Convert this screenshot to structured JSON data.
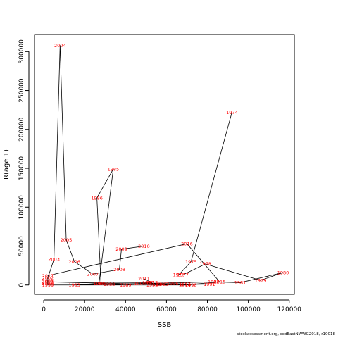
{
  "chart_data": {
    "type": "scatter",
    "connected": true,
    "xlabel": "SSB",
    "ylabel": "R(age 1)",
    "xlim": [
      -4500,
      122500
    ],
    "ylim": [
      -12000,
      322000
    ],
    "xticks": [
      0,
      20000,
      40000,
      60000,
      80000,
      100000,
      120000
    ],
    "yticks": [
      0,
      50000,
      100000,
      150000,
      200000,
      250000,
      300000
    ],
    "line_color": "#000000",
    "label_color": "#ff0000",
    "points": [
      {
        "year": "1974",
        "ssb": 92000,
        "r": 222000
      },
      {
        "year": "1975",
        "ssb": 72000,
        "r": 30000
      },
      {
        "year": "1976",
        "ssb": 66000,
        "r": 13000
      },
      {
        "year": "1977",
        "ssb": 68000,
        "r": 13000
      },
      {
        "year": "1978",
        "ssb": 79000,
        "r": 27000
      },
      {
        "year": "1979",
        "ssb": 106000,
        "r": 6000
      },
      {
        "year": "1980",
        "ssb": 117000,
        "r": 16000
      },
      {
        "year": "1981",
        "ssb": 96000,
        "r": 3000
      },
      {
        "year": "1982",
        "ssb": 83000,
        "r": 4000
      },
      {
        "year": "1983",
        "ssb": 15000,
        "r": 0
      },
      {
        "year": "1984",
        "ssb": 27000,
        "r": 2000
      },
      {
        "year": "1985",
        "ssb": 34000,
        "r": 149000
      },
      {
        "year": "1986",
        "ssb": 26000,
        "r": 112000
      },
      {
        "year": "1987",
        "ssb": 28000,
        "r": 2000
      },
      {
        "year": "1988",
        "ssb": 32000,
        "r": 1000
      },
      {
        "year": "1989",
        "ssb": 40000,
        "r": 0
      },
      {
        "year": "1990",
        "ssb": 47000,
        "r": 2000
      },
      {
        "year": "1991",
        "ssb": 81000,
        "r": 1000
      },
      {
        "year": "1992",
        "ssb": 53000,
        "r": 0
      },
      {
        "year": "1993",
        "ssb": 51000,
        "r": 3000
      },
      {
        "year": "1994",
        "ssb": 56000,
        "r": 1000
      },
      {
        "year": "1995",
        "ssb": 58000,
        "r": 1000
      },
      {
        "year": "1996",
        "ssb": 63000,
        "r": 2000
      },
      {
        "year": "1997",
        "ssb": 69000,
        "r": 1000
      },
      {
        "year": "1998",
        "ssb": 72000,
        "r": 0
      },
      {
        "year": "1999",
        "ssb": 2000,
        "r": 0
      },
      {
        "year": "2000",
        "ssb": 2000,
        "r": 2000
      },
      {
        "year": "2001",
        "ssb": 2000,
        "r": 5000
      },
      {
        "year": "2002",
        "ssb": 2000,
        "r": 9000
      },
      {
        "year": "2003",
        "ssb": 5000,
        "r": 33000
      },
      {
        "year": "2004",
        "ssb": 8000,
        "r": 308000
      },
      {
        "year": "2005",
        "ssb": 11000,
        "r": 58000
      },
      {
        "year": "2006",
        "ssb": 15000,
        "r": 30000
      },
      {
        "year": "2007",
        "ssb": 24000,
        "r": 14000
      },
      {
        "year": "2008",
        "ssb": 37000,
        "r": 20000
      },
      {
        "year": "2009",
        "ssb": 38000,
        "r": 46000
      },
      {
        "year": "2010",
        "ssb": 49000,
        "r": 50000
      },
      {
        "year": "2011",
        "ssb": 49000,
        "r": 8000
      },
      {
        "year": "2012",
        "ssb": 53000,
        "r": 3000
      },
      {
        "year": "2013",
        "ssb": 2000,
        "r": 4000
      },
      {
        "year": "2014",
        "ssb": 69000,
        "r": 0
      },
      {
        "year": "2015",
        "ssb": 86000,
        "r": 4000
      },
      {
        "year": "2016",
        "ssb": 70000,
        "r": 53000
      },
      {
        "year": "2017",
        "ssb": 2000,
        "r": 12000
      }
    ]
  },
  "footnote": "stockassessment.org, codEastNWWG2018, r10018"
}
